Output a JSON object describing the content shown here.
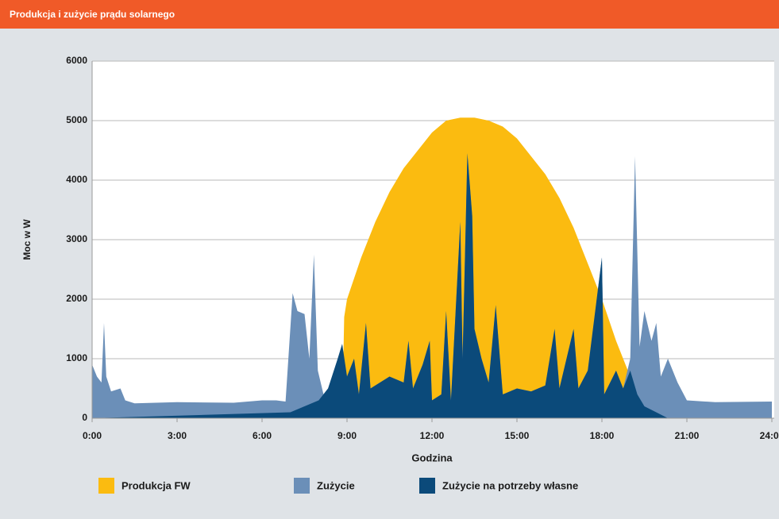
{
  "chart_data": {
    "type": "area",
    "title": "Produkcja i zużycie prądu solarnego",
    "x_label": "Godzina",
    "y_label": "Moc w W",
    "xlim": [
      0,
      24
    ],
    "ylim": [
      0,
      6000
    ],
    "xticks": [
      {
        "value": 0,
        "label": "0:00"
      },
      {
        "value": 3,
        "label": "3:00"
      },
      {
        "value": 6,
        "label": "6:00"
      },
      {
        "value": 9,
        "label": "9:00"
      },
      {
        "value": 12,
        "label": "12:00"
      },
      {
        "value": 15,
        "label": "15:00"
      },
      {
        "value": 18,
        "label": "18:00"
      },
      {
        "value": 21,
        "label": "21:00"
      },
      {
        "value": 24,
        "label": "24:00"
      }
    ],
    "yticks": [
      0,
      1000,
      2000,
      3000,
      4000,
      5000,
      6000
    ],
    "grid": true,
    "series": [
      {
        "name": "Produkcja FW",
        "color": "#fbbb10",
        "x": [
          0,
          8.83,
          8.9,
          9,
          9.5,
          10,
          10.5,
          11,
          11.5,
          12,
          12.5,
          13,
          13.5,
          14,
          14.5,
          15,
          15.5,
          16,
          16.5,
          17,
          17.5,
          18,
          18.5,
          19,
          19.5,
          20,
          20.5,
          24
        ],
        "values": [
          0,
          0,
          1700,
          2000,
          2700,
          3300,
          3800,
          4200,
          4500,
          4800,
          5000,
          5050,
          5050,
          5000,
          4900,
          4700,
          4400,
          4100,
          3700,
          3200,
          2600,
          2000,
          1300,
          700,
          300,
          100,
          0,
          0
        ]
      },
      {
        "name": "Zużycie",
        "color": "#6b8fb8",
        "x": [
          0,
          0.17,
          0.33,
          0.42,
          0.5,
          0.67,
          1,
          1.17,
          1.5,
          3,
          5,
          6,
          6.5,
          6.83,
          7.08,
          7.25,
          7.5,
          7.67,
          7.83,
          7.97,
          8.17,
          8.5,
          8.83,
          9,
          9.25,
          9.42,
          9.67,
          9.83,
          10.5,
          11,
          11.17,
          11.33,
          11.67,
          11.92,
          12,
          12.33,
          12.5,
          12.67,
          13,
          13.08,
          13.25,
          13.42,
          13.5,
          13.75,
          14,
          14.25,
          14.5,
          15,
          15.5,
          16,
          16.33,
          16.5,
          17,
          17.17,
          17.5,
          18,
          18.08,
          18.5,
          18.75,
          19,
          19.17,
          19.33,
          19.5,
          19.75,
          19.92,
          20.08,
          20.33,
          20.67,
          21,
          22,
          24
        ],
        "values": [
          900,
          700,
          600,
          1600,
          700,
          450,
          500,
          300,
          250,
          270,
          260,
          300,
          300,
          280,
          2100,
          1800,
          1750,
          1000,
          2750,
          800,
          400,
          600,
          1200,
          700,
          1000,
          400,
          1600,
          500,
          700,
          600,
          1300,
          500,
          900,
          1300,
          300,
          400,
          1800,
          300,
          3300,
          1000,
          4450,
          3400,
          1500,
          1000,
          600,
          1900,
          400,
          500,
          450,
          550,
          1500,
          500,
          1500,
          500,
          800,
          2700,
          400,
          800,
          500,
          1000,
          4400,
          1200,
          1800,
          1300,
          1600,
          700,
          1000,
          600,
          300,
          270,
          280
        ]
      },
      {
        "name": "Zużycie na potrzeby własne",
        "color": "#0b4a7a",
        "x": [
          0,
          7,
          7.5,
          8,
          8.33,
          8.67,
          8.83,
          9,
          9.25,
          9.42,
          9.67,
          9.83,
          10.5,
          11,
          11.17,
          11.33,
          11.67,
          11.92,
          12,
          12.33,
          12.5,
          12.67,
          13,
          13.08,
          13.25,
          13.42,
          13.5,
          13.75,
          14,
          14.25,
          14.5,
          15,
          15.5,
          16,
          16.33,
          16.5,
          17,
          17.17,
          17.5,
          18,
          18.08,
          18.5,
          18.75,
          19,
          19.25,
          19.5,
          20,
          20.33,
          24
        ],
        "values": [
          0,
          100,
          200,
          300,
          500,
          1000,
          1250,
          700,
          1000,
          400,
          1600,
          500,
          700,
          600,
          1300,
          500,
          900,
          1300,
          300,
          400,
          1800,
          300,
          3300,
          1000,
          4450,
          3400,
          1500,
          1000,
          600,
          1900,
          400,
          500,
          450,
          550,
          1500,
          500,
          1500,
          500,
          800,
          2700,
          400,
          800,
          500,
          800,
          400,
          200,
          80,
          0,
          0
        ]
      }
    ]
  }
}
